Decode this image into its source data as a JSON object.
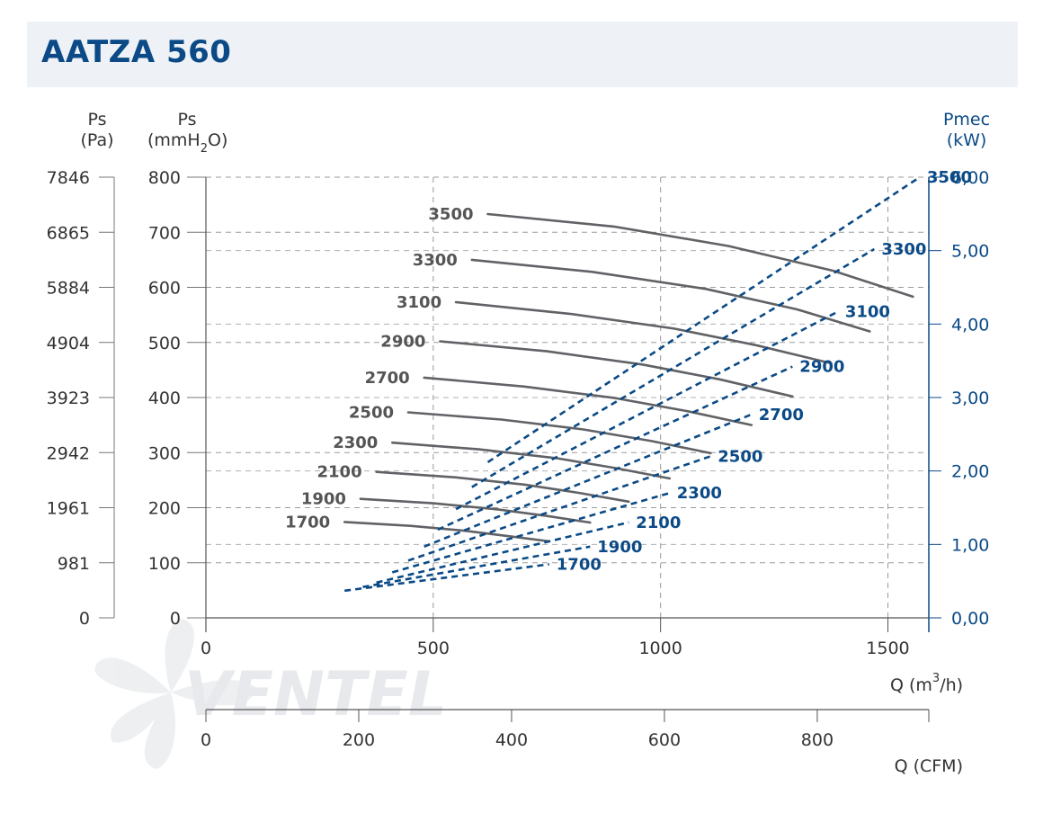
{
  "title": "AATZA 560",
  "chart_data": {
    "type": "line",
    "title": "AATZA 560",
    "axes": {
      "ps_pa_label": [
        "Ps",
        "(Pa)"
      ],
      "ps_mmh2o_label": [
        "Ps",
        "(mmH",
        "2",
        "O)"
      ],
      "pmec_label": [
        "Pmec",
        "(kW)"
      ],
      "q_m3h_label": [
        "Q (m",
        "3",
        "/h)"
      ],
      "q_cfm_label": "Q (CFM)",
      "ps_pa_ticks": [
        "0",
        "981",
        "1961",
        "2942",
        "3923",
        "4904",
        "5884",
        "6865",
        "7846"
      ],
      "ps_mmh2o_ticks": [
        "0",
        "100",
        "200",
        "300",
        "400",
        "500",
        "600",
        "700",
        "800"
      ],
      "pmec_ticks": [
        "0,00",
        "1,00",
        "2,00",
        "3,00",
        "4,00",
        "5,00",
        "6,00"
      ],
      "q_m3h_ticks": [
        "0",
        "500",
        "1000",
        "1500"
      ],
      "q_cfm_ticks": [
        "0",
        "200",
        "400",
        "600",
        "800"
      ],
      "xlim_m3h": [
        0,
        1590
      ],
      "ylim_mmh2o": [
        0,
        800
      ],
      "ylim_kw": [
        0,
        6
      ],
      "xlim_cfm": [
        0,
        946
      ]
    },
    "grid": true,
    "pressure_series": [
      {
        "name": "3500",
        "x": [
          620,
          900,
          1150,
          1380,
          1555
        ],
        "y": [
          733,
          710,
          675,
          630,
          583
        ]
      },
      {
        "name": "3300",
        "x": [
          585,
          850,
          1100,
          1300,
          1460
        ],
        "y": [
          650,
          628,
          597,
          560,
          520
        ]
      },
      {
        "name": "3100",
        "x": [
          550,
          800,
          1030,
          1210,
          1375
        ],
        "y": [
          573,
          552,
          525,
          495,
          462
        ]
      },
      {
        "name": "2900",
        "x": [
          515,
          750,
          960,
          1130,
          1290
        ],
        "y": [
          502,
          484,
          460,
          433,
          402
        ]
      },
      {
        "name": "2700",
        "x": [
          480,
          700,
          900,
          1060,
          1200
        ],
        "y": [
          436,
          420,
          399,
          375,
          350
        ]
      },
      {
        "name": "2500",
        "x": [
          445,
          650,
          830,
          980,
          1110
        ],
        "y": [
          373,
          360,
          342,
          321,
          299
        ]
      },
      {
        "name": "2300",
        "x": [
          410,
          600,
          770,
          900,
          1020
        ],
        "y": [
          318,
          306,
          290,
          272,
          253
        ]
      },
      {
        "name": "2100",
        "x": [
          375,
          550,
          700,
          820,
          930
        ],
        "y": [
          265,
          255,
          242,
          227,
          211
        ]
      },
      {
        "name": "1900",
        "x": [
          340,
          500,
          640,
          750,
          845
        ],
        "y": [
          216,
          208,
          197,
          185,
          173
        ]
      },
      {
        "name": "1700",
        "x": [
          305,
          450,
          570,
          670,
          755
        ],
        "y": [
          174,
          167,
          158,
          148,
          139
        ]
      }
    ],
    "power_series": [
      {
        "name": "3500",
        "x": [
          620,
          1570
        ],
        "y": [
          2.12,
          6.0
        ]
      },
      {
        "name": "3300",
        "x": [
          585,
          1470
        ],
        "y": [
          1.78,
          5.02
        ]
      },
      {
        "name": "3100",
        "x": [
          550,
          1390
        ],
        "y": [
          1.48,
          4.17
        ]
      },
      {
        "name": "2900",
        "x": [
          510,
          1290
        ],
        "y": [
          1.2,
          3.42
        ]
      },
      {
        "name": "2700",
        "x": [
          480,
          1200
        ],
        "y": [
          0.97,
          2.77
        ]
      },
      {
        "name": "2500",
        "x": [
          445,
          1110
        ],
        "y": [
          0.78,
          2.2
        ]
      },
      {
        "name": "2300",
        "x": [
          410,
          1020
        ],
        "y": [
          0.62,
          1.7
        ]
      },
      {
        "name": "2100",
        "x": [
          375,
          930
        ],
        "y": [
          0.48,
          1.3
        ]
      },
      {
        "name": "1900",
        "x": [
          345,
          845
        ],
        "y": [
          0.42,
          0.97
        ]
      },
      {
        "name": "1700",
        "x": [
          305,
          755
        ],
        "y": [
          0.37,
          0.73
        ]
      }
    ]
  },
  "logo_text": "VENTEL"
}
